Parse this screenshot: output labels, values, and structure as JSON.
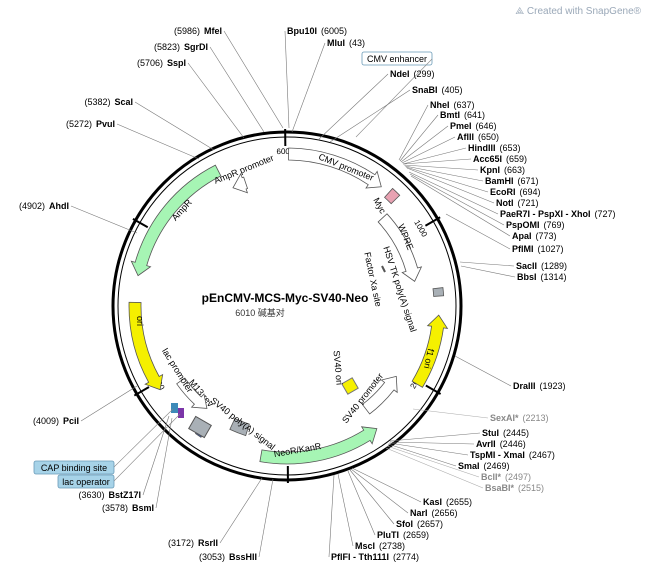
{
  "watermark": {
    "text": "Created with SnapGene®",
    "icon": "snapgene-logo-icon"
  },
  "plasmid": {
    "name": "pEnCMV-MCS-Myc-SV40-Neo",
    "size_label": "6010 碱基对"
  },
  "ruler_ticks": [
    "6000",
    "1000",
    "2000",
    "3000",
    "4000",
    "5000"
  ],
  "features": [
    {
      "label": "CMV promoter",
      "color": "#ffffff"
    },
    {
      "label": "Myc",
      "color": "#e8a2b2"
    },
    {
      "label": "WPRE",
      "color": "#ffffff"
    },
    {
      "label": "HSV TK poly(A) signal",
      "color": "#a9b0b6"
    },
    {
      "label": "Factor Xa site",
      "color": "#ffffff"
    },
    {
      "label": "f1 ori",
      "color": "#f5f000"
    },
    {
      "label": "SV40 ori",
      "color": "#f5f000"
    },
    {
      "label": "SV40 promoter",
      "color": "#ffffff"
    },
    {
      "label": "NeoR/KanR",
      "color": "#a6f5b4"
    },
    {
      "label": "SV40 poly(A) signal",
      "color": "#a9b0b6"
    },
    {
      "label": "M13 rev",
      "color": "#2f55b8"
    },
    {
      "label": "lac promoter",
      "color": "#ffffff"
    },
    {
      "label": "ori",
      "color": "#f5f000"
    },
    {
      "label": "AmpR",
      "color": "#a6f5b4"
    },
    {
      "label": "AmpR promoter",
      "color": "#ffffff"
    }
  ],
  "boxed_labels": [
    {
      "text": "CMV enhancer",
      "style": "white"
    },
    {
      "text": "CAP binding site",
      "style": "blue"
    },
    {
      "text": "lac operator",
      "style": "blue"
    }
  ],
  "sites": [
    {
      "name": "Bpu10I",
      "pos": "(6005)",
      "grey": false
    },
    {
      "name": "MluI",
      "pos": "(43)",
      "grey": false
    },
    {
      "name": "NdeI",
      "pos": "(299)",
      "grey": false
    },
    {
      "name": "SnaBI",
      "pos": "(405)",
      "grey": false
    },
    {
      "name": "NheI",
      "pos": "(637)",
      "grey": false
    },
    {
      "name": "BmtI",
      "pos": "(641)",
      "grey": false
    },
    {
      "name": "PmeI",
      "pos": "(646)",
      "grey": false
    },
    {
      "name": "AflII",
      "pos": "(650)",
      "grey": false
    },
    {
      "name": "HindIII",
      "pos": "(653)",
      "grey": false
    },
    {
      "name": "Acc65I",
      "pos": "(659)",
      "grey": false
    },
    {
      "name": "KpnI",
      "pos": "(663)",
      "grey": false
    },
    {
      "name": "BamHI",
      "pos": "(671)",
      "grey": false
    },
    {
      "name": "EcoRI",
      "pos": "(694)",
      "grey": false
    },
    {
      "name": "NotI",
      "pos": "(721)",
      "grey": false
    },
    {
      "name": "PaeR7I - PspXI - XhoI",
      "pos": "(727)",
      "grey": false
    },
    {
      "name": "PspOMI",
      "pos": "(769)",
      "grey": false
    },
    {
      "name": "ApaI",
      "pos": "(773)",
      "grey": false
    },
    {
      "name": "PflMI",
      "pos": "(1027)",
      "grey": false
    },
    {
      "name": "SacII",
      "pos": "(1289)",
      "grey": false
    },
    {
      "name": "BbsI",
      "pos": "(1314)",
      "grey": false
    },
    {
      "name": "DraIII",
      "pos": "(1923)",
      "grey": false
    },
    {
      "name": "SexAI*",
      "pos": "(2213)",
      "grey": true
    },
    {
      "name": "StuI",
      "pos": "(2445)",
      "grey": false
    },
    {
      "name": "AvrII",
      "pos": "(2446)",
      "grey": false
    },
    {
      "name": "TspMI - XmaI",
      "pos": "(2467)",
      "grey": false
    },
    {
      "name": "SmaI",
      "pos": "(2469)",
      "grey": false
    },
    {
      "name": "BclI*",
      "pos": "(2497)",
      "grey": true
    },
    {
      "name": "BsaBI*",
      "pos": "(2515)",
      "grey": true
    },
    {
      "name": "KasI",
      "pos": "(2655)",
      "grey": false
    },
    {
      "name": "NarI",
      "pos": "(2656)",
      "grey": false
    },
    {
      "name": "SfoI",
      "pos": "(2657)",
      "grey": false
    },
    {
      "name": "PluTI",
      "pos": "(2659)",
      "grey": false
    },
    {
      "name": "MscI",
      "pos": "(2738)",
      "grey": false
    },
    {
      "name": "PflFI - Tth111I",
      "pos": "(2774)",
      "grey": false
    },
    {
      "name": "MfeI",
      "pos": "(5986)",
      "grey": false
    },
    {
      "name": "SgrDI",
      "pos": "(5823)",
      "grey": false
    },
    {
      "name": "SspI",
      "pos": "(5706)",
      "grey": false
    },
    {
      "name": "ScaI",
      "pos": "(5382)",
      "grey": false
    },
    {
      "name": "PvuI",
      "pos": "(5272)",
      "grey": false
    },
    {
      "name": "AhdI",
      "pos": "(4902)",
      "grey": false
    },
    {
      "name": "PciI",
      "pos": "(4009)",
      "grey": false
    },
    {
      "name": "BstZ17I",
      "pos": "(3630)",
      "grey": false
    },
    {
      "name": "BsmI",
      "pos": "(3578)",
      "grey": false
    },
    {
      "name": "RsrII",
      "pos": "(3172)",
      "grey": false
    },
    {
      "name": "BssHII",
      "pos": "(3053)",
      "grey": false
    }
  ]
}
